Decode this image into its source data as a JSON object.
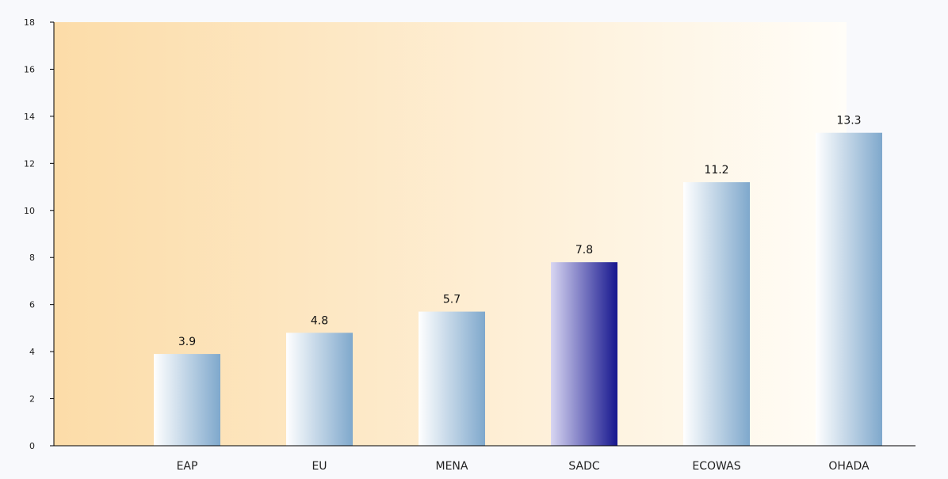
{
  "chart_data": {
    "type": "bar",
    "categories": [
      "EAP",
      "EU",
      "MENA",
      "SADC",
      "ECOWAS",
      "OHADA"
    ],
    "values": [
      3.9,
      4.8,
      5.7,
      7.8,
      11.2,
      13.3
    ],
    "value_labels": [
      "3.9",
      "4.8",
      "5.7",
      "7.8",
      "11.2",
      "13.3"
    ],
    "highlight_category": "SADC",
    "ylim": [
      0,
      18
    ],
    "yticks": [
      0,
      2,
      4,
      6,
      8,
      10,
      12,
      14,
      16,
      18
    ],
    "ytick_labels": [
      "0",
      "2",
      "4",
      "6",
      "8",
      "10",
      "12",
      "14",
      "16",
      "18"
    ],
    "title": "",
    "xlabel": "",
    "ylabel": "",
    "grid": false,
    "colors": {
      "bar_start": "#ffffff",
      "bar_end": "#7fa8cc",
      "highlight_start": "#d8d6f2",
      "highlight_end": "#16168e",
      "bg_left": "#fcdca8",
      "bg_right": "#fffdf8",
      "axis": "#000000"
    }
  }
}
